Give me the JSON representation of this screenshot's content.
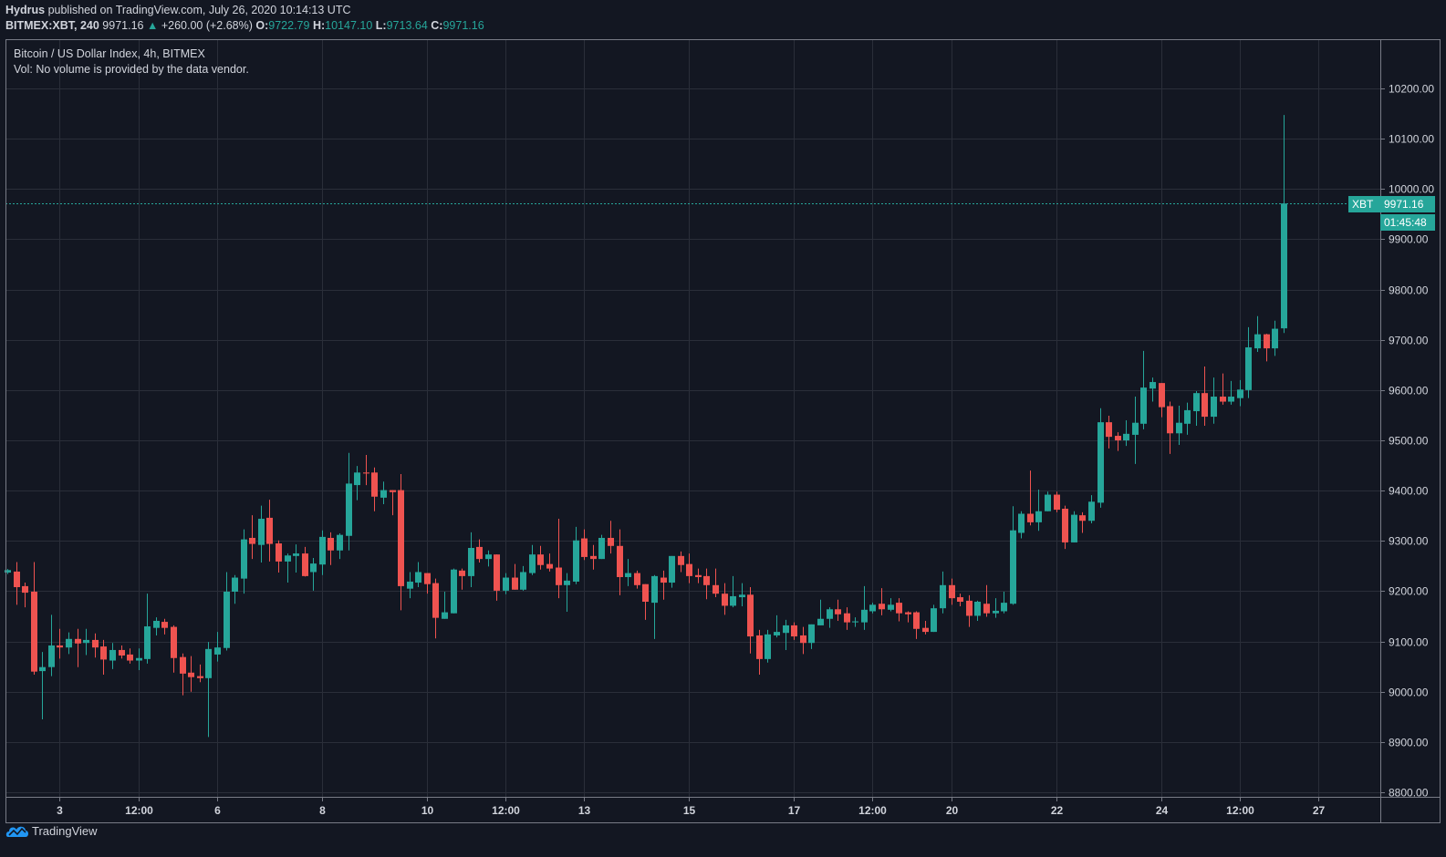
{
  "header": {
    "author": "Hydrus",
    "published": "published on TradingView.com, July 26, 2020 10:14:13 UTC",
    "symbol": "BITMEX:XBT, 240",
    "last": "9971.16",
    "change": "+260.00 (+2.68%)",
    "o_label": "O:",
    "o": "9722.79",
    "h_label": "H:",
    "h": "10147.10",
    "l_label": "L:",
    "l": "9713.64",
    "c_label": "C:",
    "c": "9971.16"
  },
  "legend": {
    "title": "Bitcoin / US Dollar Index, 4h, BITMEX",
    "volume": "Vol: No volume is provided by the data vendor."
  },
  "price_tag": {
    "symbol": "XBT",
    "price": "9971.16",
    "countdown": "01:45:48"
  },
  "logo": {
    "text": "TradingView"
  },
  "colors": {
    "up": "#26a69a",
    "down": "#ef5350",
    "background": "#131722",
    "grid": "#2a2e39"
  },
  "chart_data": {
    "type": "candlestick",
    "title": "Bitcoin / US Dollar Index, 4h, BITMEX",
    "interval": "4h",
    "ylim": [
      8800,
      10200
    ],
    "y_ticks": [
      "10200.00",
      "10100.00",
      "10000.00",
      "9900.00",
      "9800.00",
      "9700.00",
      "9600.00",
      "9500.00",
      "9400.00",
      "9300.00",
      "9200.00",
      "9100.00",
      "9000.00",
      "8900.00",
      "8800.00"
    ],
    "x_ticks": [
      {
        "label": "3",
        "index": 6
      },
      {
        "label": "12:00",
        "index": 15
      },
      {
        "label": "6",
        "index": 24
      },
      {
        "label": "8",
        "index": 36
      },
      {
        "label": "10",
        "index": 48
      },
      {
        "label": "12:00",
        "index": 57
      },
      {
        "label": "13",
        "index": 66
      },
      {
        "label": "15",
        "index": 78
      },
      {
        "label": "17",
        "index": 90
      },
      {
        "label": "12:00",
        "index": 99
      },
      {
        "label": "20",
        "index": 108
      },
      {
        "label": "22",
        "index": 120
      },
      {
        "label": "24",
        "index": 132
      },
      {
        "label": "12:00",
        "index": 141
      },
      {
        "label": "27",
        "index": 150
      }
    ],
    "last_price": 9971.16,
    "grid": true,
    "ohlc": [
      [
        9237,
        9244,
        9234,
        9242
      ],
      [
        9239,
        9258,
        9173,
        9208
      ],
      [
        9210,
        9217,
        9168,
        9197
      ],
      [
        9199,
        9258,
        9034,
        9040
      ],
      [
        9041,
        9079,
        8945,
        9049
      ],
      [
        9049,
        9153,
        9031,
        9092
      ],
      [
        9092,
        9125,
        9066,
        9088
      ],
      [
        9088,
        9118,
        9075,
        9105
      ],
      [
        9105,
        9125,
        9049,
        9096
      ],
      [
        9097,
        9125,
        9073,
        9103
      ],
      [
        9103,
        9116,
        9068,
        9088
      ],
      [
        9090,
        9103,
        9034,
        9064
      ],
      [
        9062,
        9097,
        9045,
        9083
      ],
      [
        9083,
        9092,
        9066,
        9072
      ],
      [
        9074,
        9086,
        9056,
        9062
      ],
      [
        9062,
        9086,
        9043,
        9067
      ],
      [
        9065,
        9195,
        9056,
        9130
      ],
      [
        9127,
        9148,
        9112,
        9141
      ],
      [
        9139,
        9145,
        9114,
        9127
      ],
      [
        9129,
        9132,
        9038,
        9067
      ],
      [
        9069,
        9076,
        8993,
        9036
      ],
      [
        9038,
        9071,
        9000,
        9029
      ],
      [
        9031,
        9054,
        9019,
        9027
      ],
      [
        9027,
        9099,
        8910,
        9085
      ],
      [
        9074,
        9119,
        9060,
        9088
      ],
      [
        9087,
        9238,
        9082,
        9199
      ],
      [
        9199,
        9232,
        9175,
        9227
      ],
      [
        9225,
        9323,
        9195,
        9303
      ],
      [
        9306,
        9351,
        9264,
        9294
      ],
      [
        9292,
        9370,
        9257,
        9344
      ],
      [
        9346,
        9382,
        9259,
        9294
      ],
      [
        9295,
        9301,
        9237,
        9259
      ],
      [
        9259,
        9275,
        9217,
        9271
      ],
      [
        9270,
        9293,
        9237,
        9275
      ],
      [
        9275,
        9288,
        9229,
        9230
      ],
      [
        9238,
        9266,
        9201,
        9255
      ],
      [
        9253,
        9321,
        9232,
        9308
      ],
      [
        9306,
        9317,
        9252,
        9281
      ],
      [
        9281,
        9315,
        9264,
        9312
      ],
      [
        9310,
        9475,
        9281,
        9414
      ],
      [
        9411,
        9449,
        9381,
        9436
      ],
      [
        9436,
        9471,
        9411,
        9434
      ],
      [
        9436,
        9446,
        9359,
        9388
      ],
      [
        9386,
        9418,
        9373,
        9401
      ],
      [
        9401,
        9401,
        9351,
        9397
      ],
      [
        9401,
        9433,
        9162,
        9210
      ],
      [
        9205,
        9238,
        9186,
        9219
      ],
      [
        9217,
        9258,
        9208,
        9238
      ],
      [
        9236,
        9236,
        9195,
        9214
      ],
      [
        9216,
        9225,
        9106,
        9147
      ],
      [
        9145,
        9199,
        9145,
        9158
      ],
      [
        9156,
        9245,
        9156,
        9243
      ],
      [
        9241,
        9245,
        9203,
        9230
      ],
      [
        9230,
        9317,
        9208,
        9286
      ],
      [
        9288,
        9303,
        9257,
        9264
      ],
      [
        9264,
        9281,
        9249,
        9273
      ],
      [
        9273,
        9273,
        9181,
        9201
      ],
      [
        9201,
        9236,
        9194,
        9227
      ],
      [
        9227,
        9254,
        9203,
        9203
      ],
      [
        9203,
        9250,
        9201,
        9238
      ],
      [
        9236,
        9292,
        9232,
        9273
      ],
      [
        9273,
        9290,
        9243,
        9252
      ],
      [
        9254,
        9275,
        9239,
        9245
      ],
      [
        9247,
        9344,
        9186,
        9212
      ],
      [
        9212,
        9236,
        9159,
        9221
      ],
      [
        9219,
        9328,
        9214,
        9301
      ],
      [
        9305,
        9323,
        9262,
        9268
      ],
      [
        9270,
        9292,
        9243,
        9264
      ],
      [
        9264,
        9312,
        9264,
        9306
      ],
      [
        9306,
        9340,
        9275,
        9290
      ],
      [
        9290,
        9323,
        9192,
        9228
      ],
      [
        9228,
        9264,
        9210,
        9236
      ],
      [
        9236,
        9241,
        9205,
        9212
      ],
      [
        9214,
        9214,
        9143,
        9179
      ],
      [
        9177,
        9232,
        9105,
        9230
      ],
      [
        9227,
        9241,
        9183,
        9217
      ],
      [
        9217,
        9270,
        9207,
        9270
      ],
      [
        9270,
        9279,
        9238,
        9252
      ],
      [
        9254,
        9275,
        9216,
        9230
      ],
      [
        9232,
        9245,
        9216,
        9228
      ],
      [
        9230,
        9245,
        9184,
        9212
      ],
      [
        9212,
        9245,
        9188,
        9195
      ],
      [
        9195,
        9216,
        9153,
        9171
      ],
      [
        9171,
        9230,
        9168,
        9190
      ],
      [
        9188,
        9216,
        9170,
        9193
      ],
      [
        9193,
        9208,
        9076,
        9110
      ],
      [
        9112,
        9123,
        9034,
        9065
      ],
      [
        9065,
        9123,
        9058,
        9114
      ],
      [
        9112,
        9152,
        9108,
        9119
      ],
      [
        9117,
        9143,
        9083,
        9132
      ],
      [
        9132,
        9138,
        9103,
        9110
      ],
      [
        9112,
        9129,
        9075,
        9097
      ],
      [
        9097,
        9134,
        9085,
        9134
      ],
      [
        9132,
        9183,
        9132,
        9145
      ],
      [
        9145,
        9168,
        9127,
        9164
      ],
      [
        9164,
        9183,
        9141,
        9154
      ],
      [
        9156,
        9168,
        9123,
        9138
      ],
      [
        9138,
        9148,
        9129,
        9140
      ],
      [
        9138,
        9210,
        9123,
        9163
      ],
      [
        9160,
        9177,
        9156,
        9173
      ],
      [
        9175,
        9206,
        9152,
        9164
      ],
      [
        9163,
        9186,
        9160,
        9173
      ],
      [
        9177,
        9186,
        9140,
        9156
      ],
      [
        9158,
        9160,
        9138,
        9154
      ],
      [
        9158,
        9160,
        9105,
        9125
      ],
      [
        9127,
        9141,
        9114,
        9119
      ],
      [
        9119,
        9173,
        9119,
        9166
      ],
      [
        9166,
        9239,
        9156,
        9212
      ],
      [
        9212,
        9225,
        9173,
        9186
      ],
      [
        9188,
        9195,
        9170,
        9179
      ],
      [
        9181,
        9192,
        9129,
        9151
      ],
      [
        9151,
        9181,
        9141,
        9179
      ],
      [
        9175,
        9212,
        9149,
        9156
      ],
      [
        9156,
        9186,
        9147,
        9161
      ],
      [
        9160,
        9199,
        9156,
        9177
      ],
      [
        9175,
        9369,
        9173,
        9321
      ],
      [
        9316,
        9359,
        9305,
        9354
      ],
      [
        9354,
        9440,
        9331,
        9337
      ],
      [
        9337,
        9402,
        9320,
        9359
      ],
      [
        9359,
        9398,
        9359,
        9392
      ],
      [
        9392,
        9398,
        9357,
        9362
      ],
      [
        9364,
        9370,
        9284,
        9297
      ],
      [
        9297,
        9359,
        9297,
        9352
      ],
      [
        9351,
        9357,
        9316,
        9340
      ],
      [
        9340,
        9391,
        9335,
        9378
      ],
      [
        9376,
        9564,
        9366,
        9536
      ],
      [
        9536,
        9549,
        9484,
        9507
      ],
      [
        9509,
        9516,
        9479,
        9500
      ],
      [
        9500,
        9540,
        9489,
        9513
      ],
      [
        9511,
        9587,
        9453,
        9535
      ],
      [
        9533,
        9678,
        9522,
        9605
      ],
      [
        9603,
        9625,
        9577,
        9616
      ],
      [
        9614,
        9614,
        9546,
        9566
      ],
      [
        9568,
        9577,
        9473,
        9514
      ],
      [
        9514,
        9569,
        9491,
        9535
      ],
      [
        9533,
        9575,
        9511,
        9560
      ],
      [
        9558,
        9598,
        9529,
        9594
      ],
      [
        9594,
        9647,
        9529,
        9547
      ],
      [
        9547,
        9625,
        9533,
        9587
      ],
      [
        9587,
        9633,
        9571,
        9577
      ],
      [
        9577,
        9618,
        9571,
        9587
      ],
      [
        9584,
        9620,
        9568,
        9601
      ],
      [
        9600,
        9725,
        9584,
        9685
      ],
      [
        9683,
        9747,
        9676,
        9711
      ],
      [
        9711,
        9712,
        9657,
        9683
      ],
      [
        9683,
        9738,
        9668,
        9722
      ],
      [
        9722.79,
        10147.1,
        9713.64,
        9971.16
      ]
    ]
  }
}
